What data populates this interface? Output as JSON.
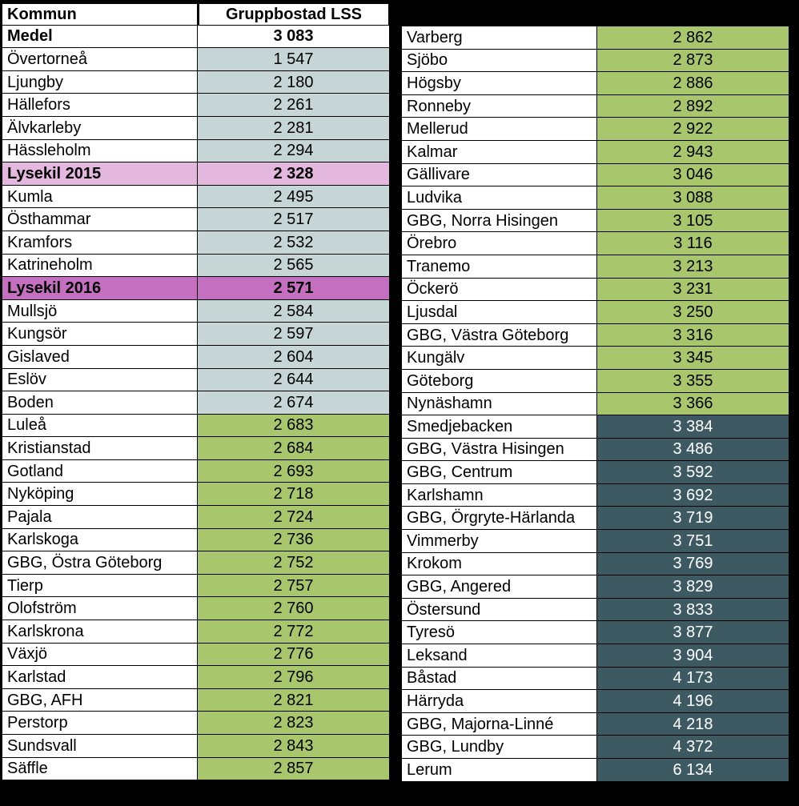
{
  "headers": {
    "kommun": "Kommun",
    "value": "Gruppbostad LSS"
  },
  "medel": {
    "name": "Medel",
    "value": "3 083"
  },
  "colors": {
    "blue": "#c6d5d6",
    "green": "#a8c66b",
    "teal_bg": "#3d5a63",
    "teal_fg": "#ffffff",
    "pink1": "#e4b7df",
    "pink2": "#c56fc0",
    "white": "#ffffff",
    "black": "#000000"
  },
  "left": [
    {
      "name": "Övertorneå",
      "value": "1 547",
      "cls": "blue"
    },
    {
      "name": "Ljungby",
      "value": "2 180",
      "cls": "blue"
    },
    {
      "name": "Hällefors",
      "value": "2 261",
      "cls": "blue"
    },
    {
      "name": "Älvkarleby",
      "value": "2 281",
      "cls": "blue"
    },
    {
      "name": "Hässleholm",
      "value": "2 294",
      "cls": "blue"
    },
    {
      "name": "Lysekil 2015",
      "value": "2 328",
      "cls": "pink1",
      "rowcls": "pink1"
    },
    {
      "name": "Kumla",
      "value": "2 495",
      "cls": "blue"
    },
    {
      "name": "Östhammar",
      "value": "2 517",
      "cls": "blue"
    },
    {
      "name": "Kramfors",
      "value": "2 532",
      "cls": "blue"
    },
    {
      "name": "Katrineholm",
      "value": "2 565",
      "cls": "blue"
    },
    {
      "name": "Lysekil 2016",
      "value": "2 571",
      "cls": "pink2",
      "rowcls": "pink2"
    },
    {
      "name": "Mullsjö",
      "value": "2 584",
      "cls": "blue"
    },
    {
      "name": "Kungsör",
      "value": "2 597",
      "cls": "blue"
    },
    {
      "name": "Gislaved",
      "value": "2 604",
      "cls": "blue"
    },
    {
      "name": "Eslöv",
      "value": "2 644",
      "cls": "blue"
    },
    {
      "name": "Boden",
      "value": "2 674",
      "cls": "blue"
    },
    {
      "name": "Luleå",
      "value": "2 683",
      "cls": "green"
    },
    {
      "name": "Kristianstad",
      "value": "2 684",
      "cls": "green"
    },
    {
      "name": "Gotland",
      "value": "2 693",
      "cls": "green"
    },
    {
      "name": "Nyköping",
      "value": "2 718",
      "cls": "green"
    },
    {
      "name": "Pajala",
      "value": "2 724",
      "cls": "green"
    },
    {
      "name": "Karlskoga",
      "value": "2 736",
      "cls": "green"
    },
    {
      "name": "GBG, Östra Göteborg",
      "value": "2 752",
      "cls": "green"
    },
    {
      "name": "Tierp",
      "value": "2 757",
      "cls": "green"
    },
    {
      "name": "Olofström",
      "value": "2 760",
      "cls": "green"
    },
    {
      "name": "Karlskrona",
      "value": "2 772",
      "cls": "green"
    },
    {
      "name": "Växjö",
      "value": "2 776",
      "cls": "green"
    },
    {
      "name": "Karlstad",
      "value": "2 796",
      "cls": "green"
    },
    {
      "name": "GBG, AFH",
      "value": "2 821",
      "cls": "green"
    },
    {
      "name": "Perstorp",
      "value": "2 823",
      "cls": "green"
    },
    {
      "name": "Sundsvall",
      "value": "2 843",
      "cls": "green"
    },
    {
      "name": "Säffle",
      "value": "2 857",
      "cls": "green"
    }
  ],
  "right": [
    {
      "name": "Varberg",
      "value": "2 862",
      "cls": "green"
    },
    {
      "name": "Sjöbo",
      "value": "2 873",
      "cls": "green"
    },
    {
      "name": "Högsby",
      "value": "2 886",
      "cls": "green"
    },
    {
      "name": "Ronneby",
      "value": "2 892",
      "cls": "green"
    },
    {
      "name": "Mellerud",
      "value": "2 922",
      "cls": "green"
    },
    {
      "name": "Kalmar",
      "value": "2 943",
      "cls": "green"
    },
    {
      "name": "Gällivare",
      "value": "3 046",
      "cls": "green"
    },
    {
      "name": "Ludvika",
      "value": "3 088",
      "cls": "green"
    },
    {
      "name": "GBG, Norra Hisingen",
      "value": "3 105",
      "cls": "green"
    },
    {
      "name": "Örebro",
      "value": "3 116",
      "cls": "green"
    },
    {
      "name": "Tranemo",
      "value": "3 213",
      "cls": "green"
    },
    {
      "name": "Öckerö",
      "value": "3 231",
      "cls": "green"
    },
    {
      "name": "Ljusdal",
      "value": "3 250",
      "cls": "green"
    },
    {
      "name": "GBG, Västra Göteborg",
      "value": "3 316",
      "cls": "green"
    },
    {
      "name": "Kungälv",
      "value": "3 345",
      "cls": "green"
    },
    {
      "name": "Göteborg",
      "value": "3 355",
      "cls": "green"
    },
    {
      "name": "Nynäshamn",
      "value": "3 366",
      "cls": "green"
    },
    {
      "name": "Smedjebacken",
      "value": "3 384",
      "cls": "teal"
    },
    {
      "name": "GBG, Västra Hisingen",
      "value": "3 486",
      "cls": "teal"
    },
    {
      "name": "GBG, Centrum",
      "value": "3 592",
      "cls": "teal"
    },
    {
      "name": "Karlshamn",
      "value": "3 692",
      "cls": "teal"
    },
    {
      "name": "GBG, Örgryte-Härlanda",
      "value": "3 719",
      "cls": "teal"
    },
    {
      "name": "Vimmerby",
      "value": "3 751",
      "cls": "teal"
    },
    {
      "name": "Krokom",
      "value": "3 769",
      "cls": "teal"
    },
    {
      "name": "GBG, Angered",
      "value": "3 829",
      "cls": "teal"
    },
    {
      "name": "Östersund",
      "value": "3 833",
      "cls": "teal"
    },
    {
      "name": "Tyresö",
      "value": "3 877",
      "cls": "teal"
    },
    {
      "name": "Leksand",
      "value": "3 904",
      "cls": "teal"
    },
    {
      "name": "Båstad",
      "value": "4 173",
      "cls": "teal"
    },
    {
      "name": "Härryda",
      "value": "4 196",
      "cls": "teal"
    },
    {
      "name": "GBG, Majorna-Linné",
      "value": "4 218",
      "cls": "teal"
    },
    {
      "name": "GBG, Lundby",
      "value": "4 372",
      "cls": "teal"
    },
    {
      "name": "Lerum",
      "value": "6 134",
      "cls": "teal"
    }
  ]
}
